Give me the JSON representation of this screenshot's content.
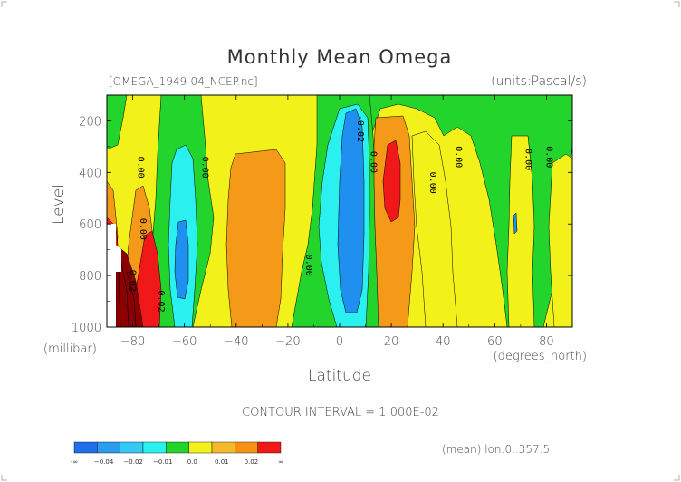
{
  "chart_data": {
    "type": "heatmap",
    "title": "Monthly Mean Omega",
    "file_label": "[OMEGA_1949-04_NCEP.nc]",
    "units_label": "(units:Pascal/s)",
    "xlabel": "Latitude",
    "x_units": "(degrees_north)",
    "ylabel": "Level",
    "y_units": "(millibar)",
    "xlim": [
      -90,
      90
    ],
    "ylim": [
      1000,
      100
    ],
    "x_ticks": [
      -80,
      -60,
      -40,
      -20,
      0,
      20,
      40,
      60,
      80
    ],
    "x_tick_labels": [
      "−80",
      "−60",
      "−40",
      "−20",
      "0",
      "20",
      "40",
      "60",
      "80"
    ],
    "y_ticks": [
      200,
      400,
      600,
      800,
      1000
    ],
    "y_tick_labels": [
      "200",
      "400",
      "600",
      "800",
      "1000"
    ],
    "contour_interval_text": "CONTOUR INTERVAL = 1.000E-02",
    "footnote": "(mean) lon:0..357.5",
    "colorbar": {
      "colors": [
        "#1f6fe8",
        "#2c9cef",
        "#33c9f3",
        "#2bf0f0",
        "#22d42c",
        "#f2f21a",
        "#f4b92a",
        "#f59214",
        "#f01818"
      ],
      "bounds": [
        -0.05,
        -0.04,
        -0.03,
        -0.02,
        -0.01,
        0.0,
        0.01,
        0.02,
        0.03
      ],
      "tick_labels": [
        "-∞",
        "−0.04",
        "−0.02",
        "−0.01",
        "0.0",
        "0.01",
        "0.02",
        "∞"
      ]
    },
    "regions": [
      {
        "name": "yellow-background",
        "value_range": [
          0.0,
          0.01
        ],
        "lat_range": [
          -90,
          90
        ],
        "level_range": [
          100,
          1000
        ]
      },
      {
        "name": "green-band-sh-60",
        "value_range": [
          -0.01,
          0.0
        ],
        "lat_range": [
          -68,
          -50
        ],
        "level_range": [
          100,
          1000
        ]
      },
      {
        "name": "cyan-band-sh-58",
        "value_range": [
          -0.02,
          -0.01
        ],
        "lat_range": [
          -66,
          -56
        ],
        "level_range": [
          160,
          1000
        ]
      },
      {
        "name": "blue-band-sh-60",
        "value_range": [
          -0.04,
          -0.02
        ],
        "lat_range": [
          -64,
          -59
        ],
        "level_range": [
          620,
          930
        ]
      },
      {
        "name": "orange-cell-sh-30",
        "value_range": [
          0.01,
          0.02
        ],
        "lat_range": [
          -44,
          -19
        ],
        "level_range": [
          300,
          1000
        ]
      },
      {
        "name": "green-band-tropics",
        "value_range": [
          -0.01,
          0.0
        ],
        "lat_range": [
          -22,
          15
        ],
        "level_range": [
          100,
          1000
        ]
      },
      {
        "name": "cyan-itcz",
        "value_range": [
          -0.02,
          -0.01
        ],
        "lat_range": [
          -9,
          12
        ],
        "level_range": [
          100,
          1000
        ]
      },
      {
        "name": "blue-itcz",
        "value_range": [
          -0.04,
          -0.02
        ],
        "lat_range": [
          -5,
          8
        ],
        "level_range": [
          120,
          980
        ]
      },
      {
        "name": "orange-cell-nh-20",
        "value_range": [
          0.01,
          0.02
        ],
        "lat_range": [
          12,
          34
        ],
        "level_range": [
          100,
          1000
        ]
      },
      {
        "name": "red-core-nh-20",
        "value_range": [
          0.02,
          0.03
        ],
        "lat_range": [
          16,
          23
        ],
        "level_range": [
          190,
          590
        ]
      },
      {
        "name": "red-cell-sh-75",
        "value_range": [
          0.02,
          0.03
        ],
        "lat_range": [
          -82,
          -71
        ],
        "level_range": [
          560,
          1000
        ]
      },
      {
        "name": "dark-red-antarctic",
        "value_range": [
          0.03,
          0.1
        ],
        "lat_range": [
          -87,
          -80
        ],
        "level_range": [
          680,
          1000
        ]
      },
      {
        "name": "missing-surface-data",
        "value_range": null,
        "lat_range": [
          -90,
          -86
        ],
        "level_range": [
          600,
          1000
        ]
      }
    ],
    "contour_labels": [
      {
        "text": "0.00",
        "lat": -78,
        "level": 380
      },
      {
        "text": "0.00",
        "lat": -53,
        "level": 380
      },
      {
        "text": "0.00",
        "lat": -77,
        "level": 620
      },
      {
        "text": "0.00",
        "lat": -13,
        "level": 760
      },
      {
        "text": "-0.02",
        "lat": 7,
        "level": 230
      },
      {
        "text": "0.00",
        "lat": 12,
        "level": 360
      },
      {
        "text": "0.00",
        "lat": 35,
        "level": 440
      },
      {
        "text": "0.00",
        "lat": 45,
        "level": 340
      },
      {
        "text": "0.00",
        "lat": 72,
        "level": 350
      },
      {
        "text": "0.00",
        "lat": 80,
        "level": 340
      },
      {
        "text": "0.02",
        "lat": -81,
        "level": 820
      },
      {
        "text": "0.02",
        "lat": -70,
        "level": 900
      }
    ]
  }
}
